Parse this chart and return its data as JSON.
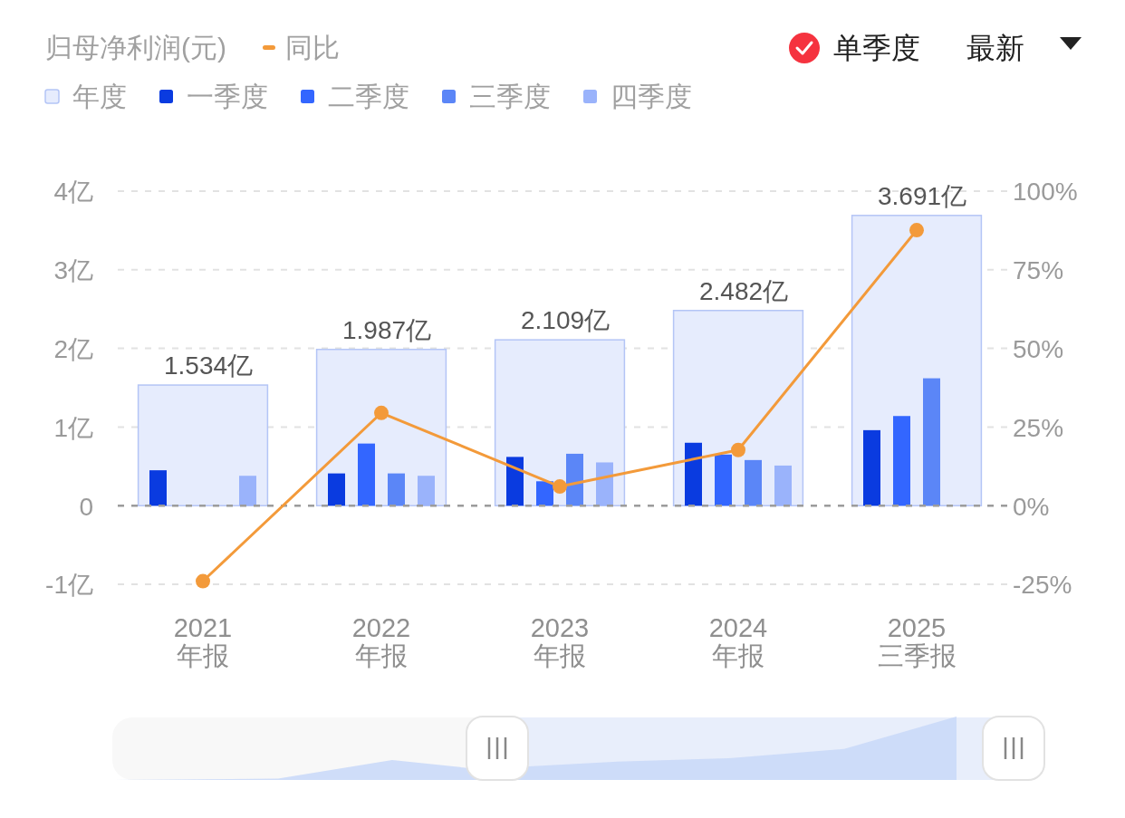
{
  "chart_data": {
    "type": "bar",
    "title": "归母净利润(元)",
    "categories": [
      "2021\n年报",
      "2022\n年报",
      "2023\n年报",
      "2024\n年报",
      "2025\n三季报"
    ],
    "series": [
      {
        "name": "年度",
        "color": "#e6ecfd",
        "values": [
          1.534,
          1.987,
          2.109,
          2.482,
          3.691
        ],
        "value_labels": [
          "1.534亿",
          "1.987亿",
          "2.109亿",
          "2.482亿",
          "3.691亿"
        ]
      },
      {
        "name": "一季度",
        "color": "#0a3be0",
        "values": [
          0.45,
          0.41,
          0.62,
          0.8,
          0.96
        ]
      },
      {
        "name": "二季度",
        "color": "#3366ff",
        "values": [
          null,
          0.79,
          0.31,
          0.65,
          1.14
        ]
      },
      {
        "name": "三季度",
        "color": "#5b86f7",
        "values": [
          null,
          0.41,
          0.66,
          0.58,
          1.62
        ]
      },
      {
        "name": "四季度",
        "color": "#9ab3fb",
        "values": [
          0.38,
          0.38,
          0.55,
          0.51,
          null
        ]
      },
      {
        "name": "同比",
        "type": "line",
        "axis": "y2",
        "color": "#f39a3a",
        "values": [
          -24,
          29.5,
          6.1,
          17.7,
          87.6
        ]
      }
    ],
    "ylim": [
      -1,
      4
    ],
    "yticks": [
      {
        "value": -1,
        "label": "-1亿"
      },
      0,
      {
        "value": 1,
        "label": "1亿"
      },
      {
        "value": 2,
        "label": "2亿"
      },
      {
        "value": 3,
        "label": "3亿"
      },
      {
        "value": 4,
        "label": "4亿"
      }
    ],
    "y2lim": [
      -25,
      100
    ],
    "y2ticks": [
      {
        "value": -25,
        "label": "-25%"
      },
      {
        "value": 0,
        "label": "0%"
      },
      {
        "value": 25,
        "label": "25%"
      },
      {
        "value": 50,
        "label": "50%"
      },
      {
        "value": 75,
        "label": "75%"
      },
      {
        "value": 100,
        "label": "100%"
      }
    ],
    "ref_lines": [
      {
        "axis": "y",
        "value": 0,
        "color": "#9c9c9c",
        "line_style": "dashed"
      }
    ],
    "grid": "y",
    "legend": "top left",
    "marker": "circle",
    "line_style": "solid",
    "annotations": [
      "单季度",
      "最新"
    ]
  }
}
